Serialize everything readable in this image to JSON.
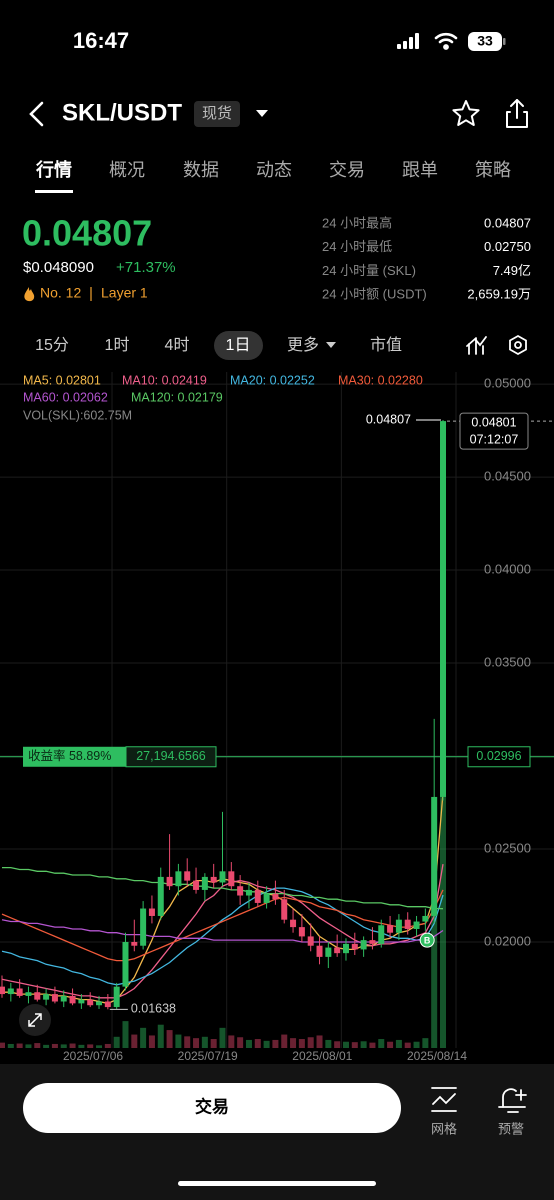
{
  "status_bar": {
    "time": "16:47",
    "battery": "33"
  },
  "header": {
    "pair": "SKL/USDT",
    "badge": "现货"
  },
  "tabs": [
    "行情",
    "概况",
    "数据",
    "动态",
    "交易",
    "跟单",
    "策略"
  ],
  "price": {
    "last": "0.04807",
    "usd": "$0.048090",
    "change": "+71.37%",
    "rank": "No. 12",
    "tag": "Layer 1"
  },
  "stats": [
    {
      "label": "24 小时最高",
      "value": "0.04807"
    },
    {
      "label": "24 小时最低",
      "value": "0.02750"
    },
    {
      "label": "24 小时量 (SKL)",
      "value": "7.49亿"
    },
    {
      "label": "24 小时额 (USDT)",
      "value": "2,659.19万"
    }
  ],
  "intervals": [
    "15分",
    "1时",
    "4时",
    "1日",
    "更多",
    "市值"
  ],
  "chart_data": {
    "type": "candlestick",
    "categories": [
      null,
      null,
      null,
      null,
      null,
      null,
      null,
      null,
      null,
      null,
      null,
      "2025/07/06",
      null,
      null,
      null,
      null,
      null,
      null,
      null,
      null,
      null,
      null,
      null,
      null,
      "2025/07/19",
      null,
      null,
      null,
      null,
      null,
      null,
      null,
      null,
      null,
      null,
      null,
      null,
      "2025/08/01",
      null,
      null,
      null,
      null,
      null,
      null,
      null,
      null,
      null,
      null,
      null,
      null,
      "2025/08/14"
    ],
    "open": [
      0.0176,
      0.0172,
      0.0175,
      0.0171,
      0.0173,
      0.0169,
      0.0172,
      0.0168,
      0.0171,
      0.0167,
      0.0169,
      0.0166,
      0.0168,
      0.0165,
      0.0176,
      0.02,
      0.0198,
      0.0218,
      0.0214,
      0.0235,
      0.023,
      0.0238,
      0.0233,
      0.0228,
      0.0235,
      0.0232,
      0.0238,
      0.023,
      0.0225,
      0.0228,
      0.0221,
      0.0226,
      0.0223,
      0.0212,
      0.0208,
      0.0203,
      0.0198,
      0.0192,
      0.0197,
      0.0194,
      0.0199,
      0.0196,
      0.0201,
      0.0199,
      0.0209,
      0.0205,
      0.0212,
      0.0207,
      0.0211,
      0.0214,
      0.0278
    ],
    "high": [
      0.0182,
      0.0178,
      0.018,
      0.0176,
      0.0177,
      0.0175,
      0.0176,
      0.0174,
      0.0175,
      0.0172,
      0.0173,
      0.0171,
      0.0172,
      0.0178,
      0.0205,
      0.0212,
      0.0222,
      0.0225,
      0.024,
      0.0258,
      0.0242,
      0.0245,
      0.024,
      0.0237,
      0.0242,
      0.027,
      0.0243,
      0.0236,
      0.0232,
      0.0233,
      0.023,
      0.0233,
      0.0228,
      0.0218,
      0.0215,
      0.021,
      0.0203,
      0.02,
      0.0204,
      0.0202,
      0.0205,
      0.0203,
      0.0208,
      0.0212,
      0.0214,
      0.0215,
      0.0216,
      0.0214,
      0.0218,
      0.032,
      0.04807
    ],
    "low": [
      0.017,
      0.0168,
      0.017,
      0.0167,
      0.0168,
      0.0166,
      0.0167,
      0.0165,
      0.0166,
      0.0164,
      0.0165,
      0.0164,
      0.01638,
      0.0164,
      0.0174,
      0.0195,
      0.0196,
      0.021,
      0.0212,
      0.0228,
      0.0225,
      0.023,
      0.0226,
      0.0222,
      0.0229,
      0.023,
      0.0228,
      0.022,
      0.0218,
      0.0219,
      0.0218,
      0.022,
      0.021,
      0.0205,
      0.02,
      0.0195,
      0.0188,
      0.0186,
      0.0192,
      0.019,
      0.0193,
      0.0192,
      0.0196,
      0.0197,
      0.0202,
      0.0201,
      0.0204,
      0.0203,
      0.0206,
      0.021,
      0.0276
    ],
    "close": [
      0.0172,
      0.0175,
      0.0171,
      0.0173,
      0.0169,
      0.0172,
      0.0168,
      0.0171,
      0.0167,
      0.0169,
      0.0166,
      0.0168,
      0.0165,
      0.0176,
      0.02,
      0.0198,
      0.0218,
      0.0214,
      0.0235,
      0.023,
      0.0238,
      0.0233,
      0.0228,
      0.0235,
      0.0232,
      0.0238,
      0.023,
      0.0225,
      0.0228,
      0.0221,
      0.0226,
      0.0223,
      0.0212,
      0.0208,
      0.0203,
      0.0198,
      0.0192,
      0.0197,
      0.0194,
      0.0199,
      0.0196,
      0.0201,
      0.0199,
      0.0209,
      0.0205,
      0.0212,
      0.0207,
      0.0211,
      0.0214,
      0.0278,
      0.04801
    ],
    "up_color": "#2ebd60",
    "down_color": "#ea4a6e",
    "ylim": [
      0.0143,
      0.05065
    ],
    "yticks": [
      {
        "value": 0.05,
        "label": "0.05000"
      },
      {
        "value": 0.045,
        "label": "0.04500"
      },
      {
        "value": 0.04,
        "label": "0.04000"
      },
      {
        "value": 0.035,
        "label": "0.03500"
      },
      {
        "value": 0.03,
        "label": "0.03000"
      },
      {
        "value": 0.025,
        "label": "0.02500"
      },
      {
        "value": 0.02,
        "label": "0.02000"
      }
    ],
    "grid": true,
    "ma_series": [
      {
        "label": "MA5: 0.02801",
        "color": "#f2b84b",
        "values": [
          0.0173,
          0.0173,
          0.0172,
          0.0172,
          0.0172,
          0.0172,
          0.0171,
          0.0171,
          0.017,
          0.0169,
          0.0169,
          0.0168,
          0.0167,
          0.0169,
          0.0175,
          0.0181,
          0.0191,
          0.0201,
          0.0213,
          0.0219,
          0.0227,
          0.023,
          0.0233,
          0.0233,
          0.0232,
          0.0234,
          0.0233,
          0.0232,
          0.0231,
          0.0228,
          0.0226,
          0.0225,
          0.0222,
          0.0218,
          0.0214,
          0.0209,
          0.0203,
          0.02,
          0.0197,
          0.0196,
          0.0196,
          0.0198,
          0.0198,
          0.0201,
          0.0202,
          0.0205,
          0.0206,
          0.0209,
          0.021,
          0.0224,
          0.02801
        ]
      },
      {
        "label": "MA10: 0.02419",
        "color": "#ef5f8b",
        "values": [
          0.018,
          0.0179,
          0.0178,
          0.0177,
          0.0176,
          0.0175,
          0.0174,
          0.0173,
          0.0172,
          0.0171,
          0.0171,
          0.017,
          0.017,
          0.017,
          0.0172,
          0.0175,
          0.018,
          0.0185,
          0.0191,
          0.0197,
          0.0203,
          0.0209,
          0.0215,
          0.0222,
          0.0225,
          0.023,
          0.0232,
          0.0233,
          0.0232,
          0.023,
          0.0229,
          0.0228,
          0.0226,
          0.0224,
          0.0221,
          0.0217,
          0.0213,
          0.021,
          0.0207,
          0.0204,
          0.0201,
          0.0199,
          0.0198,
          0.0199,
          0.0199,
          0.02,
          0.0201,
          0.0203,
          0.0205,
          0.0214,
          0.02419
        ]
      },
      {
        "label": "MA20: 0.02252",
        "color": "#43b7e0",
        "values": [
          0.0195,
          0.0194,
          0.0192,
          0.0191,
          0.019,
          0.0188,
          0.0187,
          0.0186,
          0.0184,
          0.0183,
          0.0181,
          0.018,
          0.0178,
          0.0177,
          0.0178,
          0.0179,
          0.0181,
          0.0183,
          0.0186,
          0.0189,
          0.0193,
          0.0197,
          0.02,
          0.0204,
          0.0208,
          0.0212,
          0.0215,
          0.0219,
          0.0222,
          0.0225,
          0.0227,
          0.0229,
          0.0229,
          0.0228,
          0.0227,
          0.0225,
          0.0222,
          0.022,
          0.0217,
          0.0214,
          0.0211,
          0.0208,
          0.0206,
          0.0205,
          0.0203,
          0.0202,
          0.0202,
          0.0201,
          0.0202,
          0.021,
          0.02252
        ]
      },
      {
        "label": "MA30: 0.02280",
        "color": "#f05a3a",
        "values": [
          0.0215,
          0.0213,
          0.0211,
          0.0209,
          0.0207,
          0.0205,
          0.0203,
          0.0201,
          0.0199,
          0.0197,
          0.0195,
          0.0193,
          0.0191,
          0.019,
          0.019,
          0.0191,
          0.0193,
          0.0195,
          0.0197,
          0.0199,
          0.0201,
          0.0203,
          0.0205,
          0.0207,
          0.0209,
          0.0211,
          0.0213,
          0.0215,
          0.0217,
          0.0219,
          0.0221,
          0.0223,
          0.0224,
          0.0223,
          0.0222,
          0.0221,
          0.0219,
          0.0218,
          0.0217,
          0.0215,
          0.0214,
          0.0212,
          0.0211,
          0.021,
          0.0209,
          0.0208,
          0.0208,
          0.0209,
          0.021,
          0.0218,
          0.0228
        ]
      },
      {
        "label": "MA60: 0.02062",
        "color": "#b455d0",
        "values": [
          0.0212,
          0.0211,
          0.0211,
          0.021,
          0.021,
          0.0209,
          0.0208,
          0.0208,
          0.0207,
          0.0207,
          0.0206,
          0.0206,
          0.0205,
          0.0205,
          0.0204,
          0.0204,
          0.0204,
          0.0203,
          0.0203,
          0.0203,
          0.0202,
          0.0202,
          0.0202,
          0.0202,
          0.0201,
          0.0201,
          0.0201,
          0.0201,
          0.0201,
          0.0201,
          0.0201,
          0.0201,
          0.0201,
          0.0201,
          0.02,
          0.02,
          0.02,
          0.02,
          0.02,
          0.02,
          0.02,
          0.02,
          0.02,
          0.02,
          0.02,
          0.02,
          0.02,
          0.0201,
          0.0201,
          0.0203,
          0.02062
        ]
      },
      {
        "label": "MA120: 0.02179",
        "color": "#5ac864",
        "values": [
          0.024,
          0.024,
          0.0239,
          0.0239,
          0.0238,
          0.0238,
          0.0237,
          0.0237,
          0.0236,
          0.0236,
          0.0236,
          0.0235,
          0.0235,
          0.0234,
          0.0234,
          0.0233,
          0.0233,
          0.0232,
          0.0232,
          0.0231,
          0.0231,
          0.0231,
          0.023,
          0.023,
          0.0229,
          0.0229,
          0.0228,
          0.0228,
          0.0227,
          0.0227,
          0.0226,
          0.0226,
          0.0226,
          0.0225,
          0.0225,
          0.0224,
          0.0224,
          0.0223,
          0.0223,
          0.0222,
          0.0222,
          0.0221,
          0.0221,
          0.0221,
          0.022,
          0.022,
          0.0219,
          0.0219,
          0.0219,
          0.0218,
          0.02179
        ]
      }
    ],
    "volume": {
      "label": "VOL(SKL):602.75M",
      "values": [
        12,
        9,
        10,
        8,
        11,
        7,
        9,
        8,
        10,
        7,
        8,
        6,
        9,
        25,
        60,
        30,
        45,
        28,
        52,
        40,
        30,
        26,
        22,
        25,
        20,
        45,
        28,
        24,
        18,
        20,
        16,
        18,
        30,
        22,
        20,
        24,
        28,
        18,
        15,
        14,
        13,
        15,
        12,
        20,
        14,
        18,
        12,
        14,
        22,
        420,
        602.75
      ]
    },
    "last_price": {
      "value": 0.04807,
      "label": "0.04807"
    },
    "live_price": {
      "value": 0.04801,
      "label": "0.04801",
      "time": "07:12:07"
    },
    "position": {
      "value": 0.02996,
      "label": "0.02996",
      "pnl_label": "收益率 58.89%",
      "amount": "27,194.6566"
    },
    "low_marker": {
      "value": 0.01638,
      "label": "0.01638"
    },
    "buy_marker": {
      "label": "B",
      "value": 0.0201
    }
  },
  "bottom": {
    "trade": "交易",
    "grid": "网格",
    "alert": "预警"
  }
}
